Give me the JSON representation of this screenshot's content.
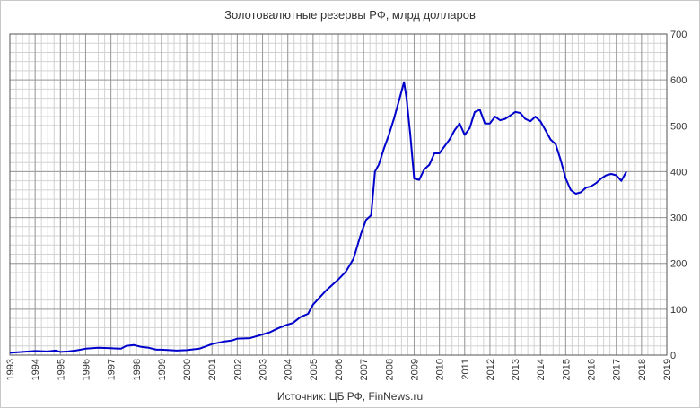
{
  "chart_data": {
    "type": "line",
    "title": "Золотовалютные резервы РФ, млрд долларов",
    "source": "Источник: ЦБ РФ, FinNews.ru",
    "xlim": [
      1993,
      2019
    ],
    "ylim": [
      0,
      700
    ],
    "y_ticks": [
      0,
      100,
      200,
      300,
      400,
      500,
      600,
      700
    ],
    "x_ticks": [
      1993,
      1994,
      1995,
      1996,
      1997,
      1998,
      1999,
      2000,
      2001,
      2002,
      2003,
      2004,
      2005,
      2006,
      2007,
      2008,
      2009,
      2010,
      2011,
      2012,
      2013,
      2014,
      2015,
      2016,
      2017,
      2018,
      2019
    ],
    "y_axis_position": "right",
    "grid": true,
    "line_color": "#0000cc",
    "series": [
      {
        "x": [
          1993.0,
          1993.5,
          1994.0,
          1994.5,
          1994.8,
          1995.0,
          1995.3,
          1995.6,
          1996.0,
          1996.5,
          1997.0,
          1997.4,
          1997.6,
          1997.9,
          1998.2,
          1998.5,
          1998.8,
          1999.0,
          1999.3,
          1999.6,
          2000.0,
          2000.5,
          2001.0,
          2001.5,
          2001.8,
          2002.0,
          2002.5,
          2003.0,
          2003.3,
          2003.6,
          2003.9,
          2004.2,
          2004.5,
          2004.8,
          2005.0,
          2005.2,
          2005.5,
          2005.7,
          2006.0,
          2006.3,
          2006.6,
          2006.9,
          2007.1,
          2007.3,
          2007.45,
          2007.6,
          2007.8,
          2008.0,
          2008.2,
          2008.4,
          2008.6,
          2008.7,
          2008.85,
          2009.0,
          2009.2,
          2009.4,
          2009.6,
          2009.8,
          2010.0,
          2010.2,
          2010.4,
          2010.6,
          2010.8,
          2011.0,
          2011.2,
          2011.4,
          2011.6,
          2011.8,
          2012.0,
          2012.2,
          2012.4,
          2012.6,
          2012.8,
          2013.0,
          2013.2,
          2013.4,
          2013.6,
          2013.8,
          2014.0,
          2014.2,
          2014.4,
          2014.6,
          2014.8,
          2015.0,
          2015.2,
          2015.4,
          2015.6,
          2015.8,
          2016.0,
          2016.2,
          2016.4,
          2016.6,
          2016.8,
          2017.0,
          2017.2,
          2017.4
        ],
        "y": [
          5,
          7,
          9,
          8,
          10,
          7,
          8,
          10,
          14,
          16,
          15,
          14,
          20,
          22,
          18,
          16,
          12,
          12,
          11,
          10,
          11,
          14,
          24,
          30,
          32,
          36,
          37,
          45,
          50,
          58,
          65,
          70,
          83,
          90,
          110,
          122,
          140,
          150,
          165,
          182,
          210,
          265,
          295,
          305,
          400,
          415,
          450,
          480,
          515,
          555,
          595,
          560,
          480,
          385,
          382,
          405,
          415,
          440,
          440,
          455,
          470,
          490,
          505,
          480,
          495,
          530,
          535,
          505,
          505,
          520,
          512,
          515,
          522,
          530,
          528,
          515,
          510,
          520,
          510,
          490,
          470,
          460,
          425,
          385,
          360,
          352,
          355,
          365,
          368,
          375,
          385,
          392,
          395,
          392,
          380,
          400
        ]
      }
    ]
  }
}
